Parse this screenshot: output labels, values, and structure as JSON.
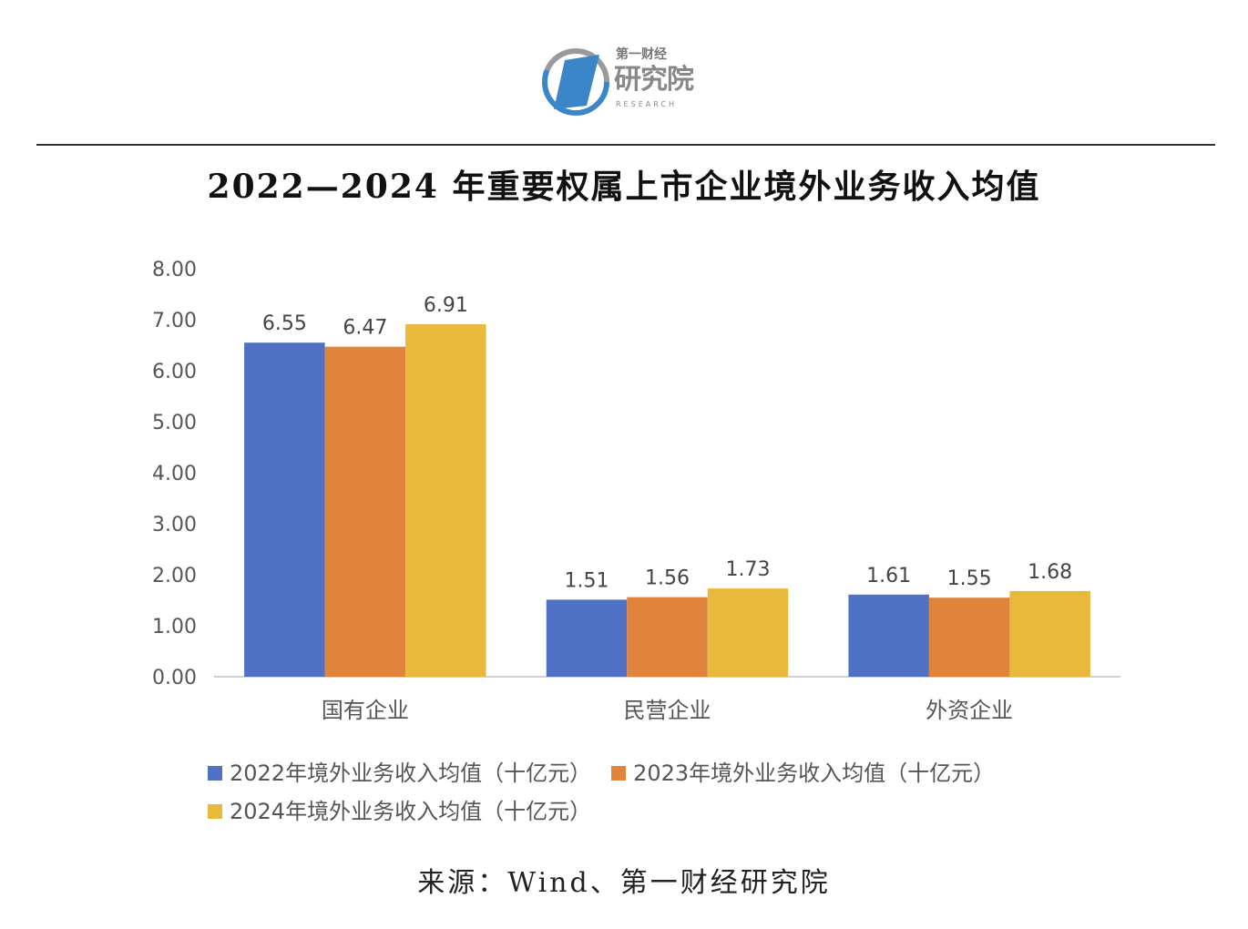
{
  "logo": {
    "top": "第一财经",
    "main": "研究院",
    "sub": "RESEARCH",
    "colors": {
      "blue": "#3b86c8",
      "gray": "#8a8a8a"
    }
  },
  "title": "2022—2024 年重要权属上市企业境外业务收入均值",
  "source": "来源：Wind、第一财经研究院",
  "chart_data": {
    "type": "bar",
    "title": "2022—2024 年重要权属上市企业境外业务收入均值",
    "categories": [
      "国有企业",
      "民营企业",
      "外资企业"
    ],
    "series": [
      {
        "name": "2022年境外业务收入均值（十亿元）",
        "values": [
          6.55,
          1.51,
          1.61
        ],
        "color": "#4f72c4"
      },
      {
        "name": "2023年境外业务收入均值（十亿元）",
        "values": [
          6.47,
          1.56,
          1.55
        ],
        "color": "#e0843c"
      },
      {
        "name": "2024年境外业务收入均值（十亿元）",
        "values": [
          6.91,
          1.73,
          1.68
        ],
        "color": "#e9b93c"
      }
    ],
    "ylim": [
      0,
      8
    ],
    "yticks": [
      "0.00",
      "1.00",
      "2.00",
      "3.00",
      "4.00",
      "5.00",
      "6.00",
      "7.00",
      "8.00"
    ],
    "grid": false,
    "legend": "bottom",
    "data_labels": true
  }
}
